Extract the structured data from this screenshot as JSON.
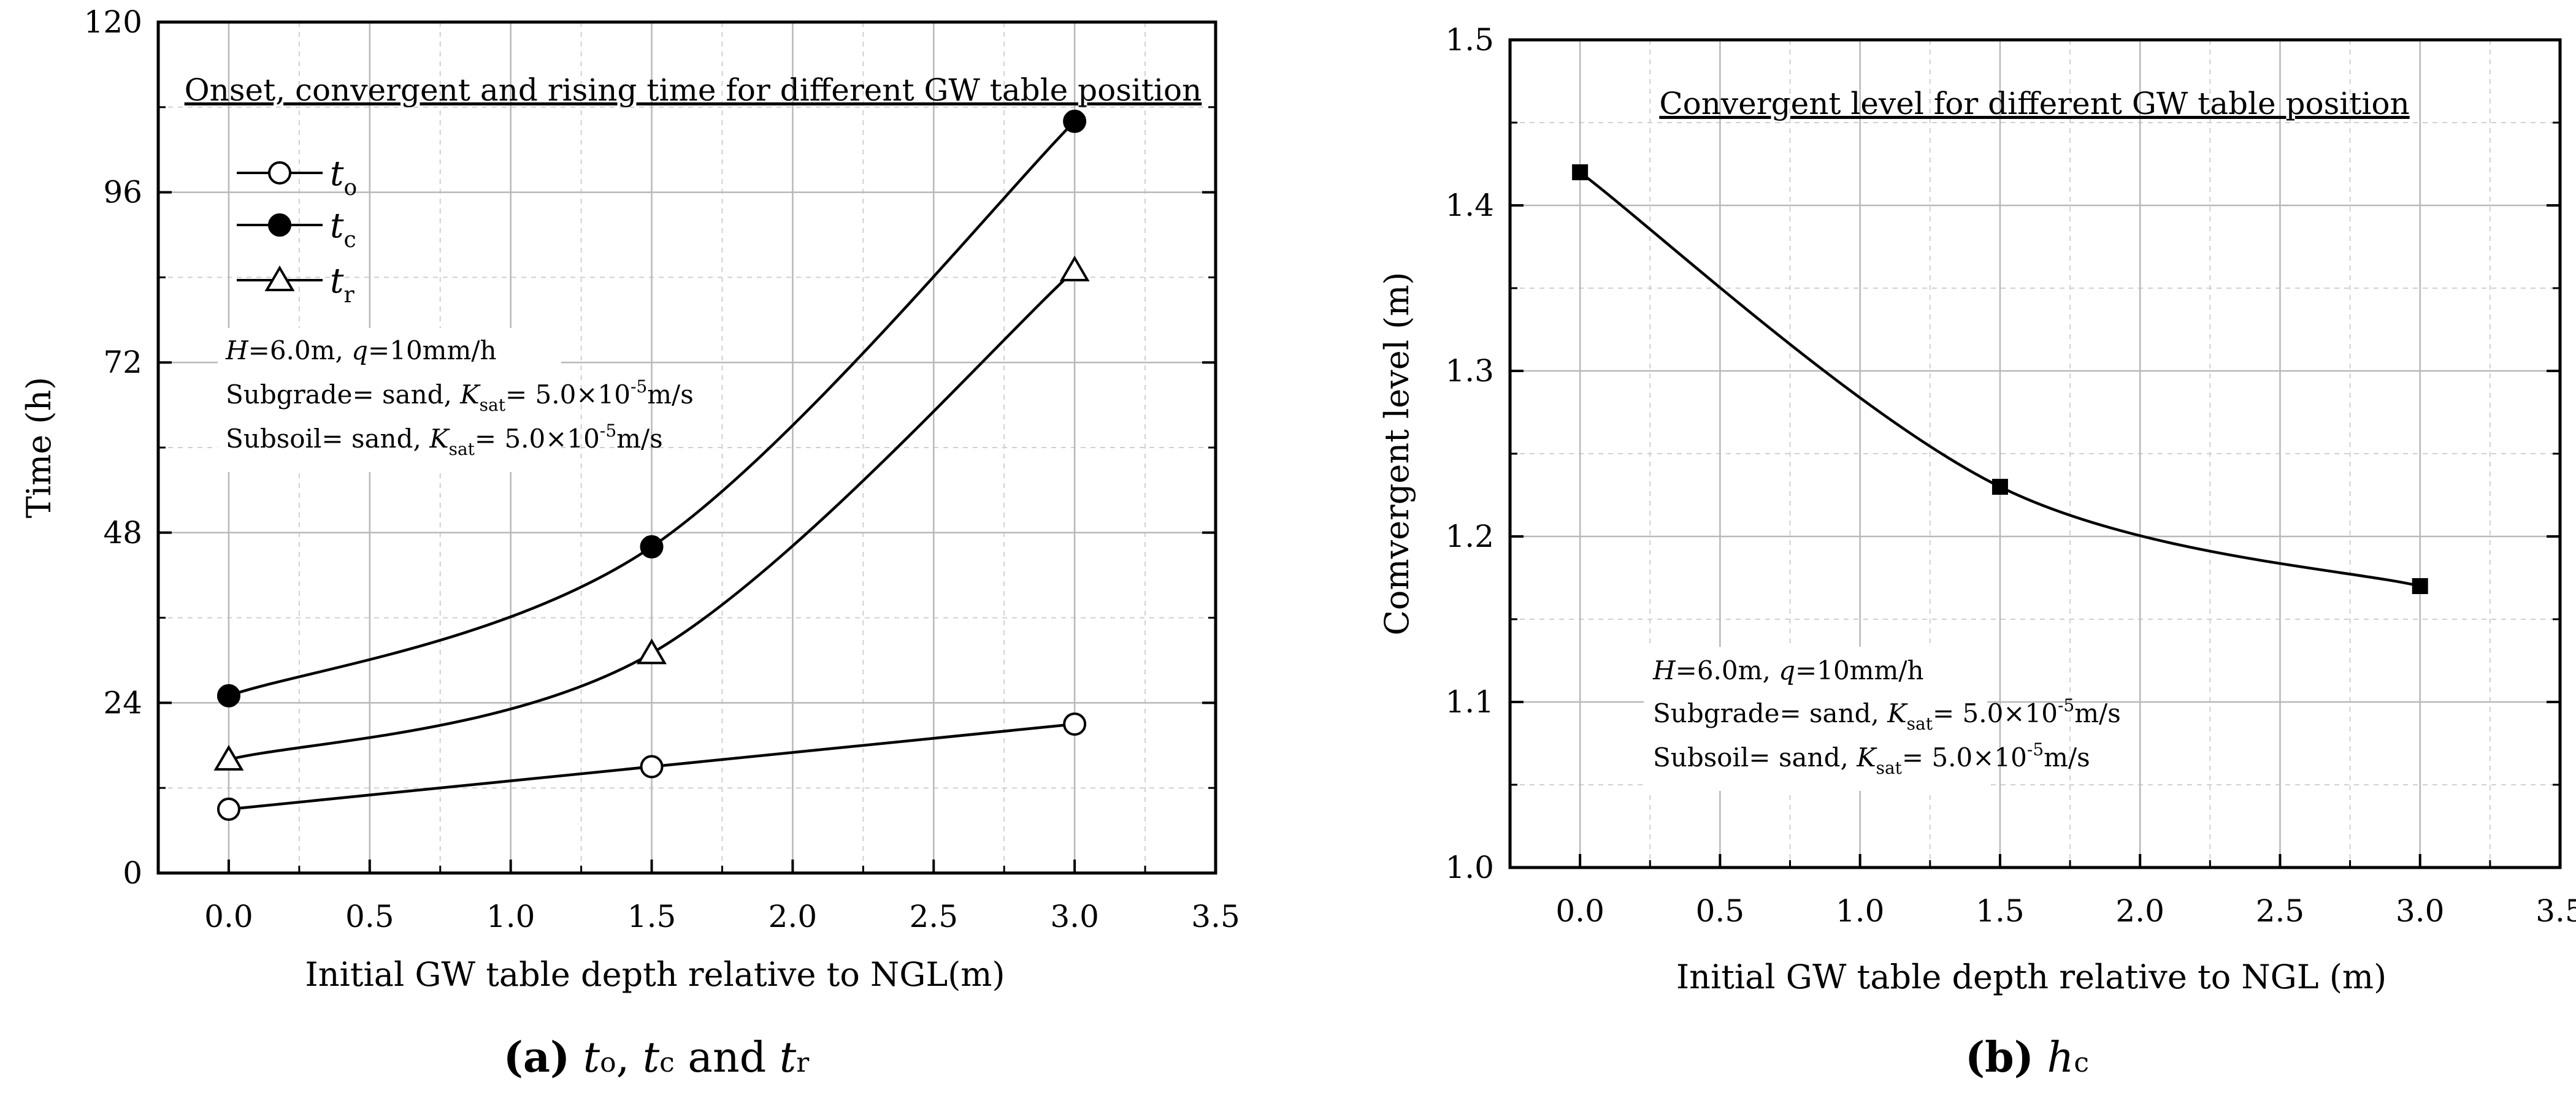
{
  "chart_data": [
    {
      "type": "line",
      "panel": "a",
      "title": "Onset, convergent and rising time for different GW table position",
      "xlabel": "Initial GW table depth relative to NGL(m)",
      "ylabel": "Time (h)",
      "xlim": [
        -0.25,
        3.5
      ],
      "ylim": [
        0,
        120
      ],
      "xticks": [
        "0.0",
        "0.5",
        "1.0",
        "1.5",
        "2.0",
        "2.5",
        "3.0",
        "3.5"
      ],
      "yticks": [
        "0",
        "24",
        "48",
        "72",
        "96",
        "120"
      ],
      "grid": true,
      "legend_position": "top-left",
      "x": [
        0.0,
        1.5,
        3.0
      ],
      "series": [
        {
          "name": "t_o",
          "label": "t",
          "sub": "o",
          "marker": "circle-open",
          "values": [
            9,
            15,
            21
          ]
        },
        {
          "name": "t_c",
          "label": "t",
          "sub": "c",
          "marker": "circle-filled",
          "values": [
            25,
            46,
            106
          ]
        },
        {
          "name": "t_r",
          "label": "t",
          "sub": "r",
          "marker": "triangle-open",
          "values": [
            16,
            31,
            85
          ]
        }
      ],
      "annotation": {
        "line1": {
          "H": "H",
          "h_val": "=6.0m, ",
          "q": "q",
          "q_val": "=10mm/h"
        },
        "line2": {
          "pre": "Subgrade= sand, ",
          "K": "K",
          "sub": "sat",
          "eq": "= 5.0×10",
          "exp": "-5",
          "unit": "m/s"
        },
        "line3": {
          "pre": "Subsoil= sand, ",
          "K": "K",
          "sub": "sat",
          "eq": "= 5.0×10",
          "exp": "-5",
          "unit": "m/s"
        }
      },
      "caption": {
        "letter": "(a)",
        "t1": "t",
        "s1": "o",
        "c1": ", ",
        "t2": "t",
        "s2": "c",
        "and": " and ",
        "t3": "t",
        "s3": "r"
      }
    },
    {
      "type": "line",
      "panel": "b",
      "title": "Convergent level for different GW table position",
      "xlabel": "Initial GW table depth relative to NGL (m)",
      "ylabel": "Comvergent level (m)",
      "xlim": [
        -0.25,
        3.5
      ],
      "ylim": [
        1.0,
        1.5
      ],
      "xticks": [
        "0.0",
        "0.5",
        "1.0",
        "1.5",
        "2.0",
        "2.5",
        "3.0",
        "3.5"
      ],
      "yticks": [
        "1.0",
        "1.1",
        "1.2",
        "1.3",
        "1.4",
        "1.5"
      ],
      "grid": true,
      "x": [
        0.0,
        1.5,
        3.0
      ],
      "series": [
        {
          "name": "h_c",
          "marker": "square-filled",
          "values": [
            1.42,
            1.23,
            1.17
          ]
        }
      ],
      "annotation": {
        "line1": {
          "H": "H",
          "h_val": "=6.0m, ",
          "q": "q",
          "q_val": "=10mm/h"
        },
        "line2": {
          "pre": "Subgrade= sand, ",
          "K": "K",
          "sub": "sat",
          "eq": "= 5.0×10",
          "exp": "-5",
          "unit": "m/s"
        },
        "line3": {
          "pre": "Subsoil= sand, ",
          "K": "K",
          "sub": "sat",
          "eq": "= 5.0×10",
          "exp": "-5",
          "unit": "m/s"
        }
      },
      "caption": {
        "letter": "(b)",
        "h": "h",
        "sub": "c"
      }
    }
  ]
}
